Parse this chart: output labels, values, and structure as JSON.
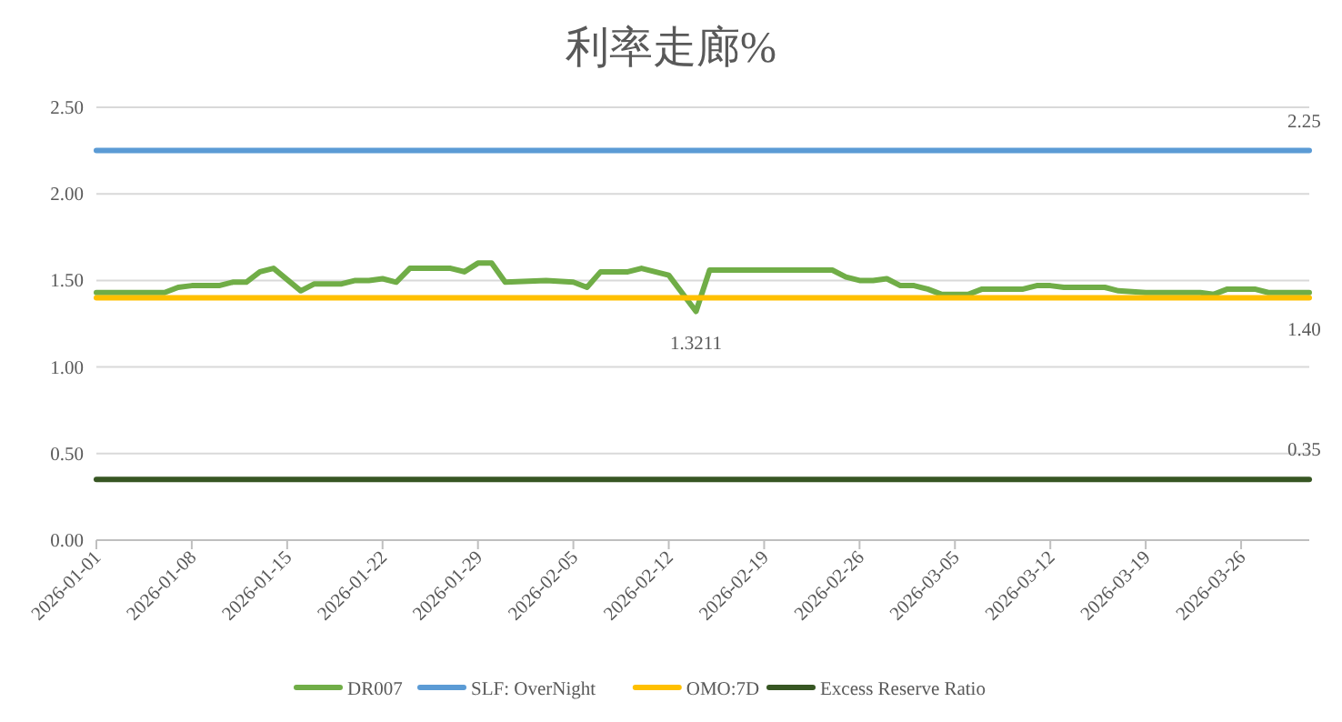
{
  "chart_data": {
    "type": "line",
    "title": "利率走廊%",
    "xlim": [
      "2026-01-01",
      "2026-03-31"
    ],
    "xticks": [
      "2026-01-01",
      "2026-01-08",
      "2026-01-15",
      "2026-01-22",
      "2026-01-29",
      "2026-02-05",
      "2026-02-12",
      "2026-02-19",
      "2026-02-26",
      "2026-03-05",
      "2026-03-12",
      "2026-03-19",
      "2026-03-26"
    ],
    "ylim": [
      0,
      2.5
    ],
    "yticks": [
      {
        "value": 0,
        "label": "0.00"
      },
      {
        "value": 0.5,
        "label": "0.50"
      },
      {
        "value": 1,
        "label": "1.00"
      },
      {
        "value": 1.5,
        "label": "1.50"
      },
      {
        "value": 2,
        "label": "2.00"
      },
      {
        "value": 2.5,
        "label": "2.50"
      }
    ],
    "grid": "y",
    "legend": "bottom",
    "marker": "none",
    "line_style": "solid",
    "series": [
      {
        "name": "DR007",
        "color": "#70ad47",
        "x": [
          "2026-01-01",
          "2026-01-06",
          "2026-01-07",
          "2026-01-08",
          "2026-01-10",
          "2026-01-11",
          "2026-01-12",
          "2026-01-13",
          "2026-01-14",
          "2026-01-16",
          "2026-01-17",
          "2026-01-19",
          "2026-01-20",
          "2026-01-21",
          "2026-01-22",
          "2026-01-23",
          "2026-01-24",
          "2026-01-27",
          "2026-01-28",
          "2026-01-29",
          "2026-01-30",
          "2026-01-31",
          "2026-02-03",
          "2026-02-05",
          "2026-02-06",
          "2026-02-07",
          "2026-02-09",
          "2026-02-10",
          "2026-02-12",
          "2026-02-14",
          "2026-02-15",
          "2026-02-24",
          "2026-02-25",
          "2026-02-26",
          "2026-02-27",
          "2026-02-28",
          "2026-03-01",
          "2026-03-02",
          "2026-03-03",
          "2026-03-04",
          "2026-03-06",
          "2026-03-07",
          "2026-03-10",
          "2026-03-11",
          "2026-03-12",
          "2026-03-13",
          "2026-03-16",
          "2026-03-17",
          "2026-03-19",
          "2026-03-20",
          "2026-03-23",
          "2026-03-24",
          "2026-03-25",
          "2026-03-27",
          "2026-03-28",
          "2026-03-31"
        ],
        "values": [
          1.43,
          1.43,
          1.46,
          1.47,
          1.47,
          1.49,
          1.49,
          1.55,
          1.57,
          1.44,
          1.48,
          1.48,
          1.5,
          1.5,
          1.51,
          1.49,
          1.57,
          1.57,
          1.55,
          1.6,
          1.6,
          1.49,
          1.5,
          1.49,
          1.46,
          1.55,
          1.55,
          1.57,
          1.53,
          1.3211,
          1.56,
          1.56,
          1.52,
          1.5,
          1.5,
          1.51,
          1.47,
          1.47,
          1.45,
          1.42,
          1.42,
          1.45,
          1.45,
          1.47,
          1.47,
          1.46,
          1.46,
          1.44,
          1.43,
          1.43,
          1.43,
          1.42,
          1.45,
          1.45,
          1.43,
          1.43
        ]
      },
      {
        "name": "SLF: OverNight",
        "color": "#5b9bd5",
        "x": [
          "2026-01-01",
          "2026-03-31"
        ],
        "values": [
          2.25,
          2.25
        ]
      },
      {
        "name": "OMO:7D",
        "color": "#ffc000",
        "x": [
          "2026-01-01",
          "2026-03-31"
        ],
        "values": [
          1.4,
          1.4
        ]
      },
      {
        "name": "Excess Reserve Ratio",
        "color": "#375623",
        "x": [
          "2026-01-01",
          "2026-03-31"
        ],
        "values": [
          0.35,
          0.35
        ]
      }
    ],
    "annotations": [
      {
        "text": "2.25",
        "x": "2026-03-31",
        "y": 2.25
      },
      {
        "text": "1.3211",
        "x": "2026-02-14",
        "y": 1.3211
      },
      {
        "text": "1.40",
        "x": "2026-03-31",
        "y": 1.4
      },
      {
        "text": "0.35",
        "x": "2026-03-31",
        "y": 0.35
      }
    ]
  }
}
